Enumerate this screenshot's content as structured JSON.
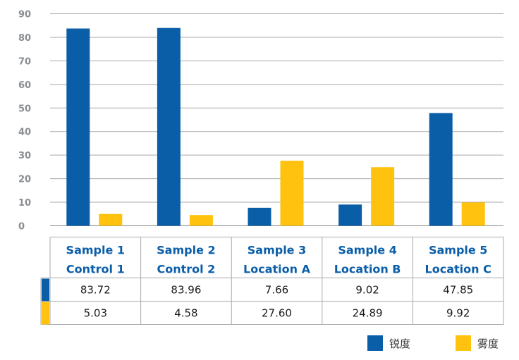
{
  "chart_data": {
    "type": "bar",
    "categories": [
      [
        "Sample 1",
        "Control 1"
      ],
      [
        "Sample 2",
        "Control 2"
      ],
      [
        "Sample 3",
        "Location A"
      ],
      [
        "Sample 4",
        "Location B"
      ],
      [
        "Sample 5",
        "Location C"
      ]
    ],
    "series": [
      {
        "name": "锐度",
        "color": "#0a5ea8",
        "values": [
          83.72,
          83.96,
          7.66,
          9.02,
          47.85
        ],
        "labels": [
          "83.72",
          "83.96",
          "7.66",
          "9.02",
          "47.85"
        ]
      },
      {
        "name": "雾度",
        "color": "#ffc20e",
        "values": [
          5.03,
          4.58,
          27.6,
          24.89,
          9.92
        ],
        "labels": [
          "5.03",
          "4.58",
          "27.60",
          "24.89",
          "9.92"
        ]
      }
    ],
    "y_ticks": [
      "0",
      "10",
      "20",
      "30",
      "40",
      "50",
      "60",
      "70",
      "80",
      "90"
    ],
    "ylim": [
      0,
      90
    ],
    "grid": true,
    "legend": "bottom-right",
    "data_table": true
  }
}
